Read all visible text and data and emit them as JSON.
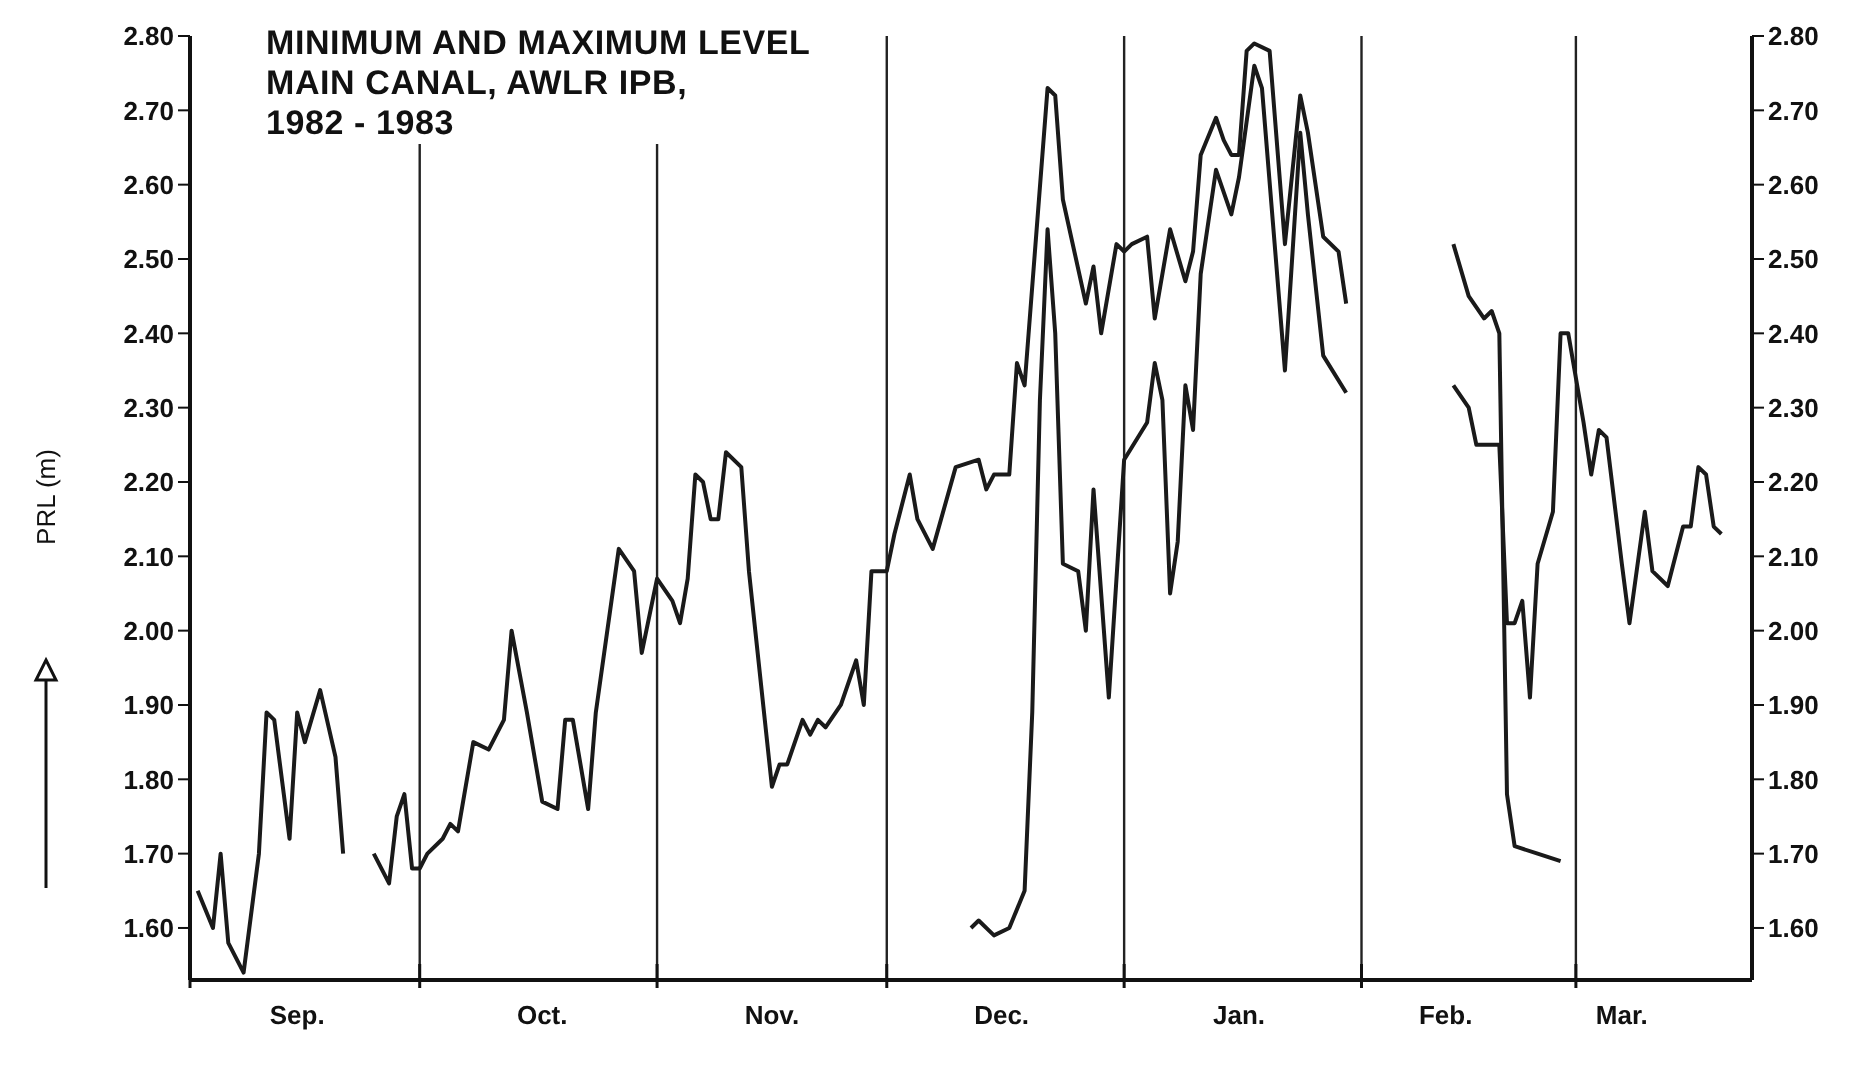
{
  "chart_data": {
    "type": "line",
    "title": "MINIMUM AND MAXIMUM LEVEL\nMAIN CANAL, AWLR IPB,\n1982 - 1983",
    "ylabel": "PRL (m)",
    "marker": "none",
    "xlim": [
      "1982-09-01",
      "1983-03-24"
    ],
    "xticks": [
      {
        "value": "1982-09-01",
        "label": null
      },
      {
        "value": "1982-09-15",
        "label": "Sep."
      },
      {
        "value": "1982-10-01",
        "label": null
      },
      {
        "value": "1982-10-17",
        "label": "Oct."
      },
      {
        "value": "1982-11-01",
        "label": null
      },
      {
        "value": "1982-11-16",
        "label": "Nov."
      },
      {
        "value": "1982-12-01",
        "label": null
      },
      {
        "value": "1982-12-16",
        "label": "Dec."
      },
      {
        "value": "1983-01-01",
        "label": null
      },
      {
        "value": "1983-01-16",
        "label": "Jan."
      },
      {
        "value": "1983-02-01",
        "label": null
      },
      {
        "value": "1983-02-12",
        "label": "Feb."
      },
      {
        "value": "1983-03-01",
        "label": null
      },
      {
        "value": "1983-03-07",
        "label": "Mar."
      }
    ],
    "ylim": [
      1.53,
      2.8
    ],
    "yticks": [
      {
        "value": 1.6,
        "label": "1.60"
      },
      {
        "value": 1.7,
        "label": "1.70"
      },
      {
        "value": 1.8,
        "label": "1.80"
      },
      {
        "value": 1.9,
        "label": "1.90"
      },
      {
        "value": 2.0,
        "label": "2.00"
      },
      {
        "value": 2.1,
        "label": "2.10"
      },
      {
        "value": 2.2,
        "label": "2.20"
      },
      {
        "value": 2.3,
        "label": "2.30"
      },
      {
        "value": 2.4,
        "label": "2.40"
      },
      {
        "value": 2.5,
        "label": "2.50"
      },
      {
        "value": 2.6,
        "label": "2.60"
      },
      {
        "value": 2.7,
        "label": "2.70"
      },
      {
        "value": 2.8,
        "label": "2.80"
      }
    ],
    "y2lim": [
      1.53,
      2.8
    ],
    "y2ticks": [
      {
        "value": 1.6,
        "label": "1.60"
      },
      {
        "value": 1.7,
        "label": "1.70"
      },
      {
        "value": 1.8,
        "label": "1.80"
      },
      {
        "value": 1.9,
        "label": "1.90"
      },
      {
        "value": 2.0,
        "label": "2.00"
      },
      {
        "value": 2.1,
        "label": "2.10"
      },
      {
        "value": 2.2,
        "label": "2.20"
      },
      {
        "value": 2.3,
        "label": "2.30"
      },
      {
        "value": 2.4,
        "label": "2.40"
      },
      {
        "value": 2.5,
        "label": "2.50"
      },
      {
        "value": 2.6,
        "label": "2.60"
      },
      {
        "value": 2.7,
        "label": "2.70"
      },
      {
        "value": 2.8,
        "label": "2.80"
      }
    ],
    "ref_lines": [
      {
        "axis": "x",
        "value": "1982-10-01",
        "color": "#222222"
      },
      {
        "axis": "x",
        "value": "1982-11-01",
        "color": "#222222"
      },
      {
        "axis": "x",
        "value": "1982-12-01",
        "color": "#222222"
      },
      {
        "axis": "x",
        "value": "1983-01-01",
        "color": "#222222"
      },
      {
        "axis": "x",
        "value": "1983-02-01",
        "color": "#222222"
      },
      {
        "axis": "x",
        "value": "1983-03-01",
        "color": "#222222"
      }
    ],
    "series": [
      {
        "color": "#1a1a1a",
        "x": [
          "1982-09-02",
          "1982-09-04",
          "1982-09-05",
          "1982-09-06",
          "1982-09-08",
          "1982-09-10",
          "1982-09-11",
          "1982-09-12",
          "1982-09-14",
          "1982-09-15",
          "1982-09-16",
          "1982-09-18",
          "1982-09-20",
          "1982-09-21",
          "1982-09-22",
          "1982-09-25",
          "1982-09-27",
          "1982-09-28",
          "1982-09-29",
          "1982-09-30",
          "1982-10-01",
          "1982-10-02",
          "1982-10-04",
          "1982-10-05",
          "1982-10-06",
          "1982-10-08",
          "1982-10-10",
          "1982-10-12",
          "1982-10-13",
          "1982-10-15",
          "1982-10-17",
          "1982-10-19",
          "1982-10-20",
          "1982-10-21",
          "1982-10-23",
          "1982-10-24",
          "1982-10-27",
          "1982-10-29",
          "1982-10-30",
          "1982-11-01",
          "1982-11-03",
          "1982-11-04",
          "1982-11-05",
          "1982-11-06",
          "1982-11-07",
          "1982-11-08",
          "1982-11-09",
          "1982-11-10",
          "1982-11-12",
          "1982-11-13",
          "1982-11-16",
          "1982-11-17",
          "1982-11-18",
          "1982-11-20",
          "1982-11-21",
          "1982-11-22",
          "1982-11-23",
          "1982-11-25",
          "1982-11-27",
          "1982-11-28",
          "1982-11-29",
          "1982-12-01",
          "1982-12-02",
          "1982-12-04",
          "1982-12-05",
          "1982-12-07",
          "1982-12-10",
          "1982-12-13",
          "1982-12-14",
          "1982-12-15",
          "1982-12-17",
          "1982-12-18",
          "1982-12-19",
          "1982-12-22",
          "1982-12-23",
          "1982-12-24",
          "1982-12-27",
          "1982-12-28",
          "1982-12-29",
          "1982-12-31",
          "1983-01-01",
          "1983-01-02",
          "1983-01-04",
          "1983-01-05",
          "1983-01-07",
          "1983-01-09",
          "1983-01-10",
          "1983-01-11",
          "1983-01-13",
          "1983-01-14",
          "1983-01-15",
          "1983-01-16",
          "1983-01-17",
          "1983-01-18",
          "1983-01-20",
          "1983-01-22",
          "1983-01-24",
          "1983-01-25",
          "1983-01-27",
          "1983-01-29",
          "1983-01-30",
          "1983-02-05",
          "1983-02-13",
          "1983-02-15",
          "1983-02-16",
          "1983-02-19",
          "1983-02-20",
          "1983-02-21",
          "1983-02-22",
          "1983-02-23",
          "1983-02-24",
          "1983-02-26",
          "1983-02-27",
          "1983-02-28",
          "1983-03-02",
          "1983-03-03",
          "1983-03-04",
          "1983-03-05",
          "1983-03-07",
          "1983-03-08",
          "1983-03-10",
          "1983-03-11",
          "1983-03-13",
          "1983-03-15",
          "1983-03-16",
          "1983-03-17",
          "1983-03-18",
          "1983-03-19",
          "1983-03-20"
        ],
        "values": [
          1.65,
          1.6,
          1.7,
          1.58,
          1.54,
          1.7,
          1.89,
          1.88,
          1.72,
          1.89,
          1.85,
          1.92,
          1.83,
          1.7,
          null,
          1.7,
          1.66,
          1.75,
          1.78,
          1.68,
          1.68,
          1.7,
          1.72,
          1.74,
          1.73,
          1.85,
          1.84,
          1.88,
          2.0,
          1.89,
          1.77,
          1.76,
          1.88,
          1.88,
          1.76,
          1.89,
          2.11,
          2.08,
          1.97,
          2.07,
          2.04,
          2.01,
          2.07,
          2.21,
          2.2,
          2.15,
          2.15,
          2.24,
          2.22,
          2.08,
          1.79,
          1.82,
          1.82,
          1.88,
          1.86,
          1.88,
          1.87,
          1.9,
          1.96,
          1.9,
          2.08,
          2.08,
          2.13,
          2.21,
          2.15,
          2.11,
          2.22,
          2.23,
          2.19,
          2.21,
          2.21,
          2.36,
          2.33,
          2.73,
          2.72,
          2.58,
          2.44,
          2.49,
          2.4,
          2.52,
          2.51,
          2.52,
          2.53,
          2.42,
          2.54,
          2.47,
          2.51,
          2.64,
          2.69,
          2.66,
          2.64,
          2.64,
          2.78,
          2.79,
          2.78,
          2.52,
          2.72,
          2.67,
          2.53,
          2.51,
          2.44,
          null,
          2.33,
          2.3,
          2.25,
          2.25,
          2.01,
          2.01,
          2.04,
          1.91,
          2.09,
          2.16,
          2.4,
          2.4,
          2.28,
          2.21,
          2.27,
          2.26,
          2.09,
          2.01,
          2.16,
          2.08,
          2.06,
          2.14,
          2.14,
          2.22,
          2.21,
          2.14,
          2.13
        ]
      },
      {
        "color": "#1a1a1a",
        "x": [
          "1982-12-12",
          "1982-12-13",
          "1982-12-15",
          "1982-12-17",
          "1982-12-19",
          "1982-12-20",
          "1982-12-21",
          "1982-12-22",
          "1982-12-23",
          "1982-12-24",
          "1982-12-26",
          "1982-12-27",
          "1982-12-28",
          "1982-12-29",
          "1982-12-30",
          "1983-01-01",
          "1983-01-04",
          "1983-01-05",
          "1983-01-06",
          "1983-01-07",
          "1983-01-08",
          "1983-01-09",
          "1983-01-10",
          "1983-01-11",
          "1983-01-13",
          "1983-01-15",
          "1983-01-16",
          "1983-01-18",
          "1983-01-19",
          "1983-01-22",
          "1983-01-24",
          "1983-01-25",
          "1983-01-27",
          "1983-01-30",
          "1983-02-05",
          "1983-02-13",
          "1983-02-15",
          "1983-02-17",
          "1983-02-18",
          "1983-02-19",
          "1983-02-20",
          "1983-02-21",
          "1983-02-24",
          "1983-02-27"
        ],
        "values": [
          1.6,
          1.61,
          1.59,
          1.6,
          1.65,
          1.89,
          2.31,
          2.54,
          2.4,
          2.09,
          2.08,
          2.0,
          2.19,
          2.05,
          1.91,
          2.23,
          2.28,
          2.36,
          2.31,
          2.05,
          2.12,
          2.33,
          2.27,
          2.48,
          2.62,
          2.56,
          2.61,
          2.76,
          2.73,
          2.35,
          2.67,
          2.56,
          2.37,
          2.32,
          null,
          2.52,
          2.45,
          2.42,
          2.43,
          2.4,
          1.78,
          1.71,
          1.7,
          1.69
        ]
      }
    ]
  }
}
